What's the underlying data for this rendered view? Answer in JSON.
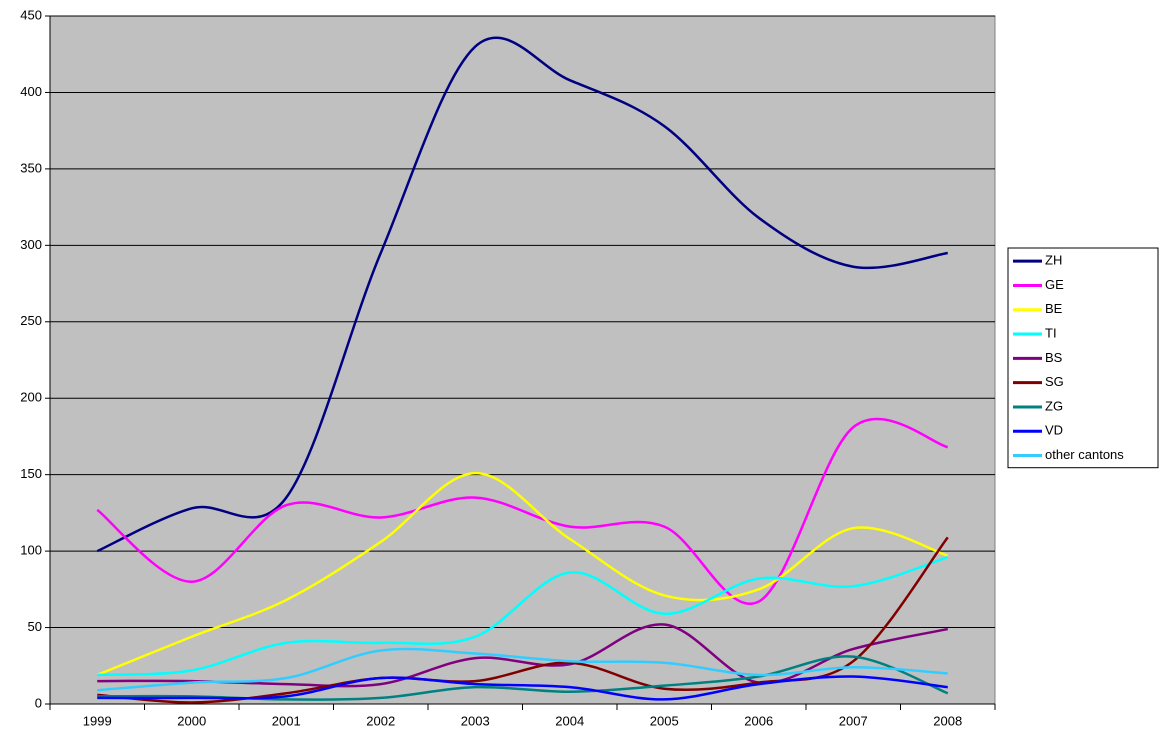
{
  "chart_data": {
    "type": "line",
    "categories": [
      "1999",
      "2000",
      "2001",
      "2002",
      "2003",
      "2004",
      "2005",
      "2006",
      "2007",
      "2008"
    ],
    "series": [
      {
        "name": "ZH",
        "color": "#000080",
        "values": [
          100,
          128,
          135,
          295,
          430,
          408,
          378,
          318,
          286,
          295
        ]
      },
      {
        "name": "GE",
        "color": "#ff00ff",
        "values": [
          127,
          80,
          130,
          122,
          135,
          116,
          116,
          67,
          181,
          168
        ]
      },
      {
        "name": "BE",
        "color": "#ffff00",
        "values": [
          19,
          44,
          68,
          106,
          151,
          108,
          71,
          75,
          115,
          97
        ]
      },
      {
        "name": "TI",
        "color": "#00ffff",
        "values": [
          19,
          22,
          40,
          40,
          44,
          86,
          59,
          82,
          77,
          96
        ]
      },
      {
        "name": "BS",
        "color": "#800080",
        "values": [
          15,
          15,
          13,
          13,
          30,
          26,
          52,
          14,
          36,
          49
        ]
      },
      {
        "name": "SG",
        "color": "#800000",
        "values": [
          6,
          1,
          7,
          17,
          15,
          27,
          10,
          14,
          28,
          109
        ]
      },
      {
        "name": "ZG",
        "color": "#008080",
        "values": [
          5,
          5,
          3,
          4,
          11,
          8,
          12,
          18,
          31,
          7
        ]
      },
      {
        "name": "VD",
        "color": "#0000ff",
        "values": [
          4,
          4,
          5,
          17,
          13,
          11,
          3,
          13,
          18,
          11
        ]
      },
      {
        "name": "other cantons",
        "color": "#33ccff",
        "values": [
          9,
          14,
          17,
          35,
          33,
          28,
          27,
          19,
          24,
          20
        ]
      }
    ],
    "ylim": [
      0,
      450
    ],
    "yticks": [
      0,
      50,
      100,
      150,
      200,
      250,
      300,
      350,
      400,
      450
    ],
    "grid": true,
    "plot_background": "#c0c0c0",
    "smooth": true,
    "legend": "right"
  }
}
